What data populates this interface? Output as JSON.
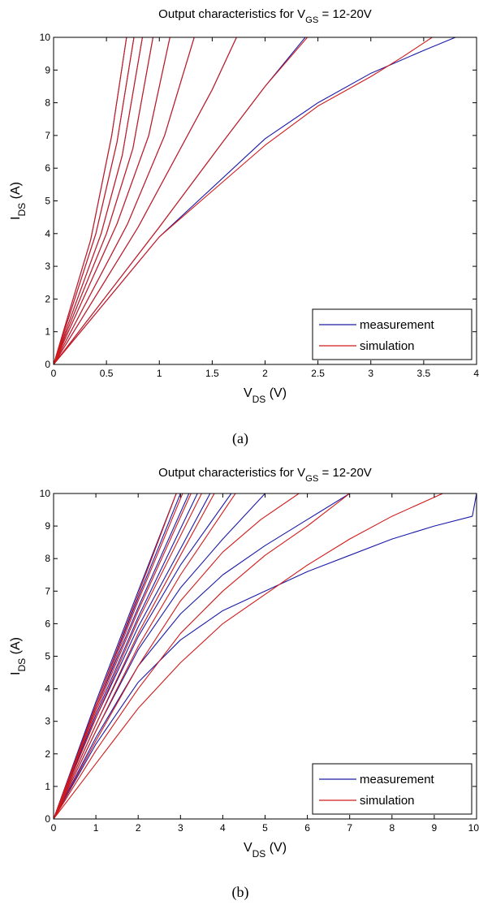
{
  "chart_data": [
    {
      "type": "line",
      "title": "Output characteristics for V_GS = 12-20V",
      "title_parts": {
        "prefix": "Output characteristics for V",
        "sub": "GS",
        "suffix": " = 12-20V"
      },
      "xlabel_parts": {
        "main": "V",
        "sub": "DS",
        "unit": " (V)"
      },
      "ylabel_parts": {
        "main": "I",
        "sub": "DS",
        "unit": " (A)"
      },
      "xlim": [
        0,
        4
      ],
      "ylim": [
        0,
        10
      ],
      "xticks": [
        0,
        0.5,
        1,
        1.5,
        2,
        2.5,
        3,
        3.5,
        4
      ],
      "xtick_labels": [
        "0",
        "0.5",
        "1",
        "1.5",
        "2",
        "2.5",
        "3",
        "3.5",
        "4"
      ],
      "yticks": [
        0,
        1,
        2,
        3,
        4,
        5,
        6,
        7,
        8,
        9,
        10
      ],
      "ytick_labels": [
        "0",
        "1",
        "2",
        "3",
        "4",
        "5",
        "6",
        "7",
        "8",
        "9",
        "10"
      ],
      "grid": false,
      "legend": {
        "position": "bottom-right",
        "entries": [
          "measurement",
          "simulation"
        ]
      },
      "series": [
        {
          "name": "measurement",
          "color": "#1a1aa8",
          "curves": [
            [
              [
                0,
                0
              ],
              [
                0.35,
                3.8
              ],
              [
                0.55,
                7.0
              ],
              [
                0.69,
                10.0
              ]
            ],
            [
              [
                0,
                0
              ],
              [
                0.4,
                4.0
              ],
              [
                0.6,
                6.8
              ],
              [
                0.76,
                10.0
              ]
            ],
            [
              [
                0,
                0
              ],
              [
                0.45,
                4.0
              ],
              [
                0.65,
                6.4
              ],
              [
                0.84,
                10.0
              ]
            ],
            [
              [
                0,
                0
              ],
              [
                0.5,
                4.0
              ],
              [
                0.75,
                6.6
              ],
              [
                0.94,
                10.0
              ]
            ],
            [
              [
                0,
                0
              ],
              [
                0.6,
                4.3
              ],
              [
                0.9,
                7.0
              ],
              [
                1.1,
                10.0
              ]
            ],
            [
              [
                0,
                0
              ],
              [
                0.7,
                4.3
              ],
              [
                1.05,
                7.0
              ],
              [
                1.33,
                10.0
              ]
            ],
            [
              [
                0,
                0
              ],
              [
                0.8,
                4.2
              ],
              [
                1.2,
                6.6
              ],
              [
                1.5,
                8.4
              ],
              [
                1.73,
                10.0
              ]
            ],
            [
              [
                0,
                0
              ],
              [
                1.0,
                4.2
              ],
              [
                1.6,
                6.8
              ],
              [
                2.0,
                8.5
              ],
              [
                2.38,
                10.0
              ]
            ],
            [
              [
                0,
                0
              ],
              [
                1.0,
                3.9
              ],
              [
                2.0,
                6.9
              ],
              [
                2.5,
                8.0
              ],
              [
                3.0,
                8.9
              ],
              [
                3.5,
                9.6
              ],
              [
                3.8,
                10.0
              ]
            ]
          ]
        },
        {
          "name": "simulation",
          "color": "#d11a1a",
          "curves": [
            [
              [
                0,
                0
              ],
              [
                0.35,
                3.8
              ],
              [
                0.55,
                7.0
              ],
              [
                0.69,
                10.0
              ]
            ],
            [
              [
                0,
                0
              ],
              [
                0.4,
                4.0
              ],
              [
                0.6,
                6.8
              ],
              [
                0.76,
                10.0
              ]
            ],
            [
              [
                0,
                0
              ],
              [
                0.45,
                4.0
              ],
              [
                0.65,
                6.4
              ],
              [
                0.84,
                10.0
              ]
            ],
            [
              [
                0,
                0
              ],
              [
                0.5,
                4.0
              ],
              [
                0.75,
                6.6
              ],
              [
                0.94,
                10.0
              ]
            ],
            [
              [
                0,
                0
              ],
              [
                0.6,
                4.3
              ],
              [
                0.9,
                7.0
              ],
              [
                1.1,
                10.0
              ]
            ],
            [
              [
                0,
                0
              ],
              [
                0.7,
                4.3
              ],
              [
                1.05,
                7.0
              ],
              [
                1.33,
                10.0
              ]
            ],
            [
              [
                0,
                0
              ],
              [
                0.8,
                4.2
              ],
              [
                1.2,
                6.6
              ],
              [
                1.5,
                8.4
              ],
              [
                1.73,
                10.0
              ]
            ],
            [
              [
                0,
                0
              ],
              [
                1.0,
                4.2
              ],
              [
                1.6,
                6.8
              ],
              [
                2.0,
                8.5
              ],
              [
                2.4,
                10.0
              ]
            ],
            [
              [
                0,
                0
              ],
              [
                1.0,
                3.9
              ],
              [
                2.0,
                6.7
              ],
              [
                2.5,
                7.9
              ],
              [
                3.0,
                8.8
              ],
              [
                3.3,
                9.4
              ],
              [
                3.58,
                10.0
              ]
            ]
          ]
        }
      ]
    },
    {
      "type": "line",
      "title": "Output characteristics for V_GS = 12-20V",
      "title_parts": {
        "prefix": "Output characteristics for V",
        "sub": "GS",
        "suffix": " = 12-20V"
      },
      "xlabel_parts": {
        "main": "V",
        "sub": "DS",
        "unit": " (V)"
      },
      "ylabel_parts": {
        "main": "I",
        "sub": "DS",
        "unit": " (A)"
      },
      "xlim": [
        0,
        10
      ],
      "ylim": [
        0,
        10
      ],
      "xticks": [
        0,
        1,
        2,
        3,
        4,
        5,
        6,
        7,
        8,
        9,
        10
      ],
      "xtick_labels": [
        "0",
        "1",
        "2",
        "3",
        "4",
        "5",
        "6",
        "7",
        "8",
        "9",
        "10"
      ],
      "yticks": [
        0,
        1,
        2,
        3,
        4,
        5,
        6,
        7,
        8,
        9,
        10
      ],
      "ytick_labels": [
        "0",
        "1",
        "2",
        "3",
        "4",
        "5",
        "6",
        "7",
        "8",
        "9",
        "10"
      ],
      "grid": false,
      "legend": {
        "position": "bottom-right",
        "entries": [
          "measurement",
          "simulation"
        ]
      },
      "series": [
        {
          "name": "measurement",
          "color": "#1a1aa8",
          "curves": [
            [
              [
                0,
                0
              ],
              [
                1.0,
                3.6
              ],
              [
                2.0,
                7.0
              ],
              [
                2.9,
                10.0
              ]
            ],
            [
              [
                0,
                0
              ],
              [
                1.0,
                3.5
              ],
              [
                2.0,
                6.8
              ],
              [
                3.0,
                10.0
              ]
            ],
            [
              [
                0,
                0
              ],
              [
                1.0,
                3.4
              ],
              [
                2.0,
                6.5
              ],
              [
                3.2,
                10.0
              ]
            ],
            [
              [
                0,
                0
              ],
              [
                1.0,
                3.2
              ],
              [
                2.0,
                6.2
              ],
              [
                3.4,
                10.0
              ]
            ],
            [
              [
                0,
                0
              ],
              [
                1.0,
                3.1
              ],
              [
                2.0,
                5.9
              ],
              [
                3.0,
                8.3
              ],
              [
                3.7,
                10.0
              ]
            ],
            [
              [
                0,
                0
              ],
              [
                1.0,
                2.9
              ],
              [
                2.0,
                5.6
              ],
              [
                3.0,
                7.8
              ],
              [
                4.2,
                10.0
              ]
            ],
            [
              [
                0,
                0
              ],
              [
                1.0,
                2.7
              ],
              [
                2.0,
                5.2
              ],
              [
                3.0,
                7.1
              ],
              [
                4.0,
                8.6
              ],
              [
                5.0,
                10.0
              ]
            ],
            [
              [
                0,
                0
              ],
              [
                1.0,
                2.5
              ],
              [
                2.0,
                4.7
              ],
              [
                3.0,
                6.3
              ],
              [
                4.0,
                7.5
              ],
              [
                5.0,
                8.4
              ],
              [
                6.0,
                9.2
              ],
              [
                7.0,
                10.0
              ]
            ],
            [
              [
                0,
                0
              ],
              [
                1.0,
                2.3
              ],
              [
                2.0,
                4.2
              ],
              [
                3.0,
                5.5
              ],
              [
                4.0,
                6.4
              ],
              [
                5.0,
                7.0
              ],
              [
                6.0,
                7.6
              ],
              [
                7.0,
                8.1
              ],
              [
                8.0,
                8.6
              ],
              [
                9.0,
                9.0
              ],
              [
                9.9,
                9.3
              ],
              [
                10.0,
                10.0
              ]
            ]
          ]
        },
        {
          "name": "simulation",
          "color": "#d11a1a",
          "curves": [
            [
              [
                0,
                0
              ],
              [
                1.0,
                3.5
              ],
              [
                2.0,
                6.9
              ],
              [
                2.9,
                10.0
              ]
            ],
            [
              [
                0,
                0
              ],
              [
                1.0,
                3.4
              ],
              [
                2.0,
                6.7
              ],
              [
                3.05,
                10.0
              ]
            ],
            [
              [
                0,
                0
              ],
              [
                1.0,
                3.3
              ],
              [
                2.0,
                6.4
              ],
              [
                3.25,
                10.0
              ]
            ],
            [
              [
                0,
                0
              ],
              [
                1.0,
                3.1
              ],
              [
                2.0,
                6.1
              ],
              [
                3.5,
                10.0
              ]
            ],
            [
              [
                0,
                0
              ],
              [
                1.0,
                2.9
              ],
              [
                2.0,
                5.7
              ],
              [
                3.0,
                8.1
              ],
              [
                3.8,
                10.0
              ]
            ],
            [
              [
                0,
                0
              ],
              [
                1.0,
                2.7
              ],
              [
                2.0,
                5.3
              ],
              [
                3.0,
                7.5
              ],
              [
                4.3,
                10.0
              ]
            ],
            [
              [
                0,
                0
              ],
              [
                1.0,
                2.4
              ],
              [
                2.0,
                4.7
              ],
              [
                3.0,
                6.7
              ],
              [
                4.0,
                8.2
              ],
              [
                4.9,
                9.2
              ],
              [
                5.8,
                10.0
              ]
            ],
            [
              [
                0,
                0
              ],
              [
                1.0,
                2.1
              ],
              [
                2.0,
                4.0
              ],
              [
                3.0,
                5.7
              ],
              [
                4.0,
                7.0
              ],
              [
                5.0,
                8.1
              ],
              [
                6.0,
                9.0
              ],
              [
                7.0,
                10.0
              ]
            ],
            [
              [
                0,
                0
              ],
              [
                1.0,
                1.7
              ],
              [
                2.0,
                3.4
              ],
              [
                3.0,
                4.8
              ],
              [
                4.0,
                6.0
              ],
              [
                5.0,
                6.9
              ],
              [
                6.0,
                7.8
              ],
              [
                7.0,
                8.6
              ],
              [
                8.0,
                9.3
              ],
              [
                9.2,
                10.0
              ]
            ]
          ]
        }
      ]
    }
  ],
  "captions": [
    "(a)",
    "(b)"
  ]
}
